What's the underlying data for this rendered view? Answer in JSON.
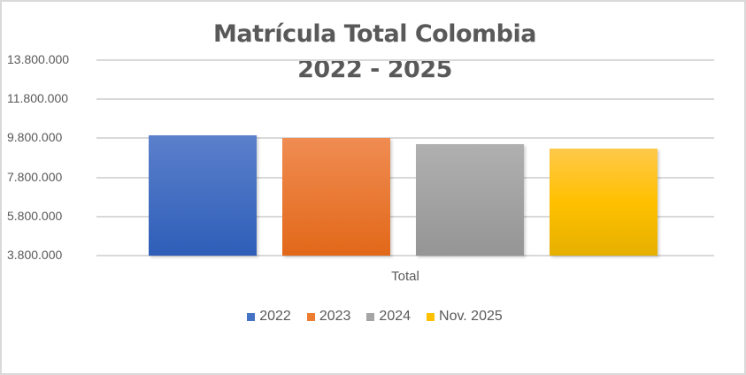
{
  "chart_data": {
    "type": "bar",
    "title": "Matrícula Total Colombia",
    "subtitle": "2022 - 2025",
    "categories": [
      "Total"
    ],
    "series": [
      {
        "name": "2022",
        "values": [
          9935000
        ],
        "color": "#4472c4"
      },
      {
        "name": "2023",
        "values": [
          9800000
        ],
        "color": "#ed7d31"
      },
      {
        "name": "2024",
        "values": [
          9510000
        ],
        "color": "#a5a5a5"
      },
      {
        "name": "Nov. 2025",
        "values": [
          9280000
        ],
        "color": "#ffc000"
      }
    ],
    "xlabel": "Total",
    "ylabel": "",
    "ylim": [
      3800000,
      13800000
    ],
    "yticks": [
      "13.800.000",
      "11.800.000",
      "9.800.000",
      "7.800.000",
      "5.800.000",
      "3.800.000"
    ],
    "grid": true,
    "legend_position": "bottom"
  },
  "title": {
    "line1": "Matrícula Total Colombia",
    "line2": "2022 - 2025"
  },
  "axis": {
    "x_category": "Total",
    "y_ticks": [
      "13.800.000",
      "11.800.000",
      "9.800.000",
      "7.800.000",
      "5.800.000",
      "3.800.000"
    ]
  },
  "legend": [
    {
      "label": "2022",
      "color": "#4472c4"
    },
    {
      "label": "2023",
      "color": "#ed7d31"
    },
    {
      "label": "2024",
      "color": "#a5a5a5"
    },
    {
      "label": "Nov. 2025",
      "color": "#ffc000"
    }
  ]
}
